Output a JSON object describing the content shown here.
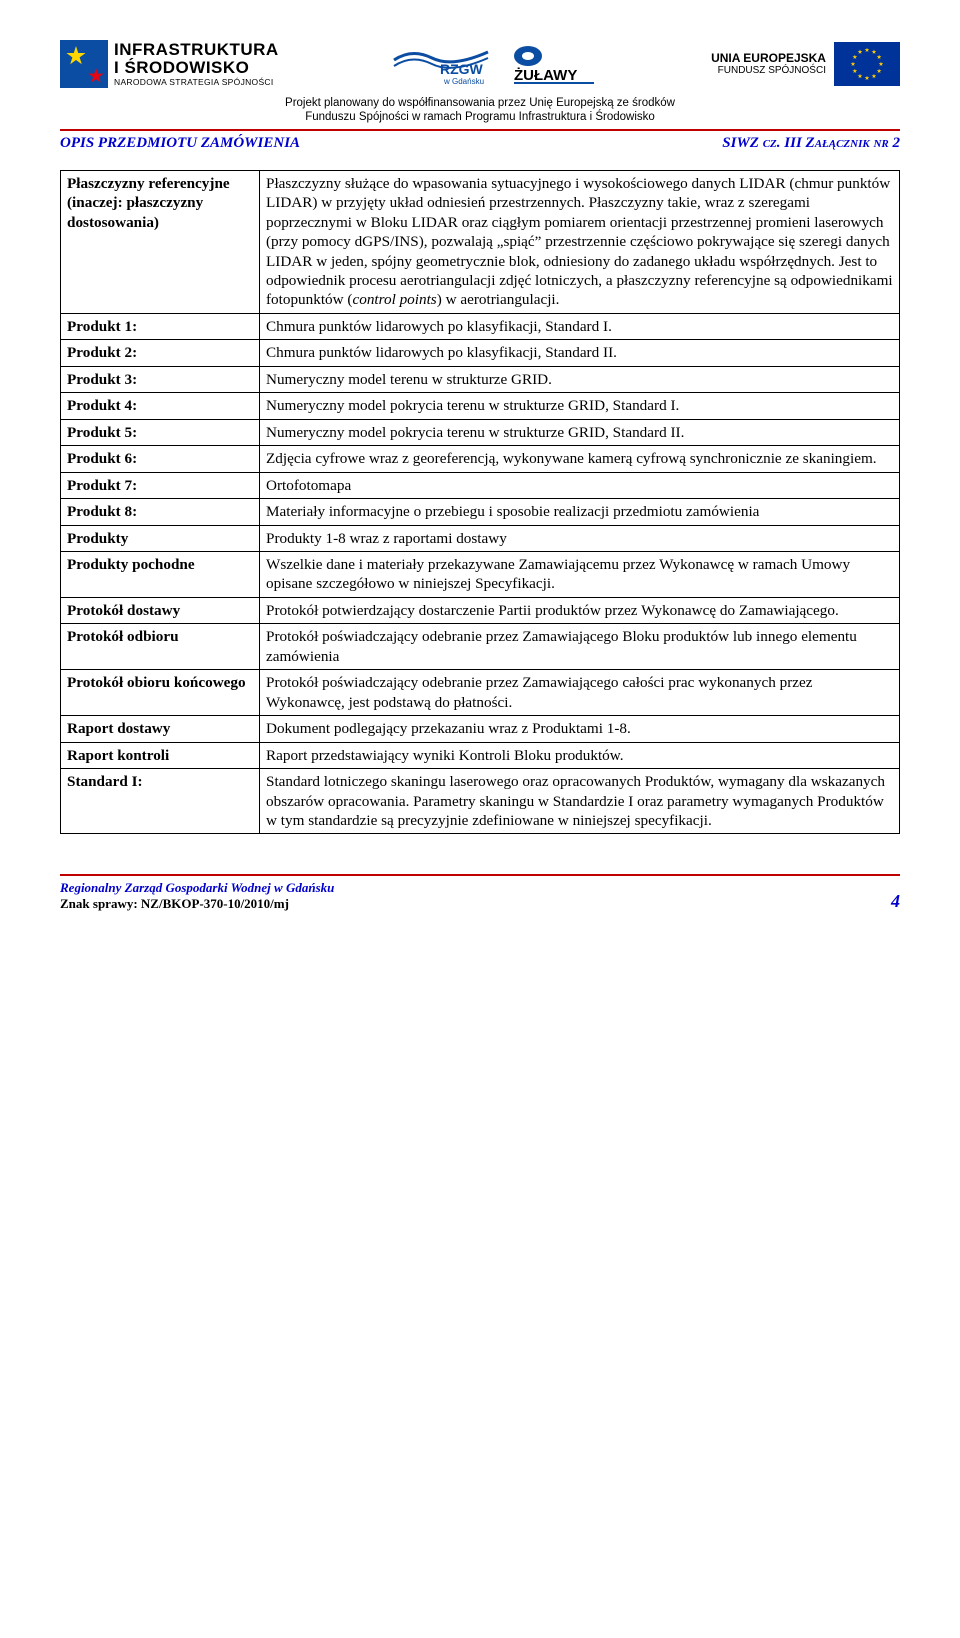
{
  "logos": {
    "infra_line1": "INFRASTRUKTURA",
    "infra_line2": "I ŚRODOWISKO",
    "infra_line3": "NARODOWA STRATEGIA SPÓJNOŚCI",
    "rzgw_top": "RZGW",
    "rzgw_sub": "w Gdańsku",
    "zulawy": "ŻUŁAWY",
    "eu_line1": "UNIA EUROPEJSKA",
    "eu_line2": "FUNDUSZ SPÓJNOŚCI"
  },
  "subheader": {
    "line1": "Projekt planowany do współfinansowania przez Unię Europejską ze środków",
    "line2": "Funduszu Spójności w ramach Programu Infrastruktura i Środowisko"
  },
  "titlebar": {
    "left": "OPIS PRZEDMIOTU ZAMÓWIENIA",
    "right_prefix": "SIWZ ",
    "right_cz": "cz",
    "right_suffix": ". III Załącznik nr 2"
  },
  "rows": [
    {
      "term": "Płaszczyzny referencyjne (inaczej: płaszczyzny dostosowania)",
      "def_html": "Płaszczyzny służące do wpasowania sytuacyjnego i wysokościowego danych LIDAR (chmur punktów LIDAR) w przyjęty układ odniesień przestrzennych. Płaszczyzny takie, wraz z szeregami poprzecznymi w Bloku LIDAR oraz ciągłym pomiarem orientacji przestrzennej promieni laserowych (przy pomocy dGPS/INS), pozwalają „spiąć” przestrzennie częściowo pokrywające się szeregi danych LIDAR w jeden, spójny geometrycznie blok, odniesiony do zadanego układu współrzędnych. Jest to odpowiednik procesu aerotriangulacji zdjęć lotniczych, a płaszczyzny referencyjne są odpowiednikami fotopunktów (<span class=\"italic\">control points</span>) w aerotriangulacji."
    },
    {
      "term": "Produkt 1:",
      "def": "Chmura punktów lidarowych po klasyfikacji, Standard I."
    },
    {
      "term": "Produkt 2:",
      "def": "Chmura punktów lidarowych po klasyfikacji, Standard II."
    },
    {
      "term": "Produkt 3:",
      "def": "Numeryczny model terenu w strukturze GRID."
    },
    {
      "term": "Produkt 4:",
      "def": "Numeryczny model pokrycia terenu w strukturze GRID, Standard I."
    },
    {
      "term": "Produkt 5:",
      "def": "Numeryczny model pokrycia terenu w strukturze GRID, Standard II."
    },
    {
      "term": "Produkt 6:",
      "def": "Zdjęcia cyfrowe wraz z georeferencją, wykonywane kamerą cyfrową synchronicznie ze skaningiem."
    },
    {
      "term": "Produkt 7:",
      "def": "Ortofotomapa"
    },
    {
      "term": "Produkt 8:",
      "def": "Materiały informacyjne o przebiegu i sposobie realizacji przedmiotu zamówienia"
    },
    {
      "term": "Produkty",
      "def": "Produkty 1-8 wraz z raportami dostawy"
    },
    {
      "term": "Produkty pochodne",
      "def": "Wszelkie dane i materiały przekazywane Zamawiającemu przez Wykonawcę w ramach Umowy opisane szczegółowo w niniejszej Specyfikacji."
    },
    {
      "term": "Protokół dostawy",
      "def": "Protokół potwierdzający dostarczenie Partii produktów przez Wykonawcę do Zamawiającego."
    },
    {
      "term": "Protokół odbioru",
      "def": "Protokół poświadczający odebranie przez Zamawiającego Bloku produktów lub innego elementu zamówienia"
    },
    {
      "term": "Protokół obioru końcowego",
      "def": "Protokół poświadczający odebranie przez Zamawiającego całości prac wykonanych przez Wykonawcę, jest podstawą do płatności."
    },
    {
      "term": "Raport dostawy",
      "def": "Dokument podlegający przekazaniu wraz z Produktami 1-8."
    },
    {
      "term": "Raport kontroli",
      "def": "Raport przedstawiający wyniki Kontroli Bloku produktów."
    },
    {
      "term": "Standard I:",
      "def": "Standard lotniczego skaningu laserowego oraz opracowanych Produktów, wymagany dla wskazanych obszarów opracowania. Parametry skaningu w Standardzie I oraz parametry wymaganych Produktów w tym standardzie są precyzyjnie zdefiniowane w niniejszej specyfikacji."
    }
  ],
  "footer": {
    "f1": "Regionalny Zarząd Gospodarki Wodnej w Gdańsku",
    "f2": "Znak sprawy: NZ/BKOP-370-10/2010/mj",
    "page": "4"
  },
  "colors": {
    "rule": "#c00000",
    "link": "#0000cc",
    "eu_blue": "#003399",
    "eu_gold": "#ffcc00"
  }
}
